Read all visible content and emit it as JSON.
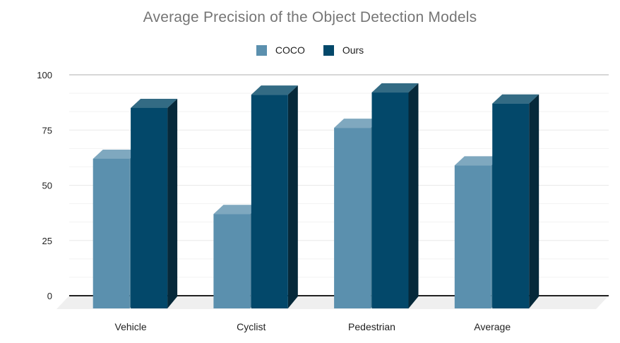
{
  "title": {
    "text": "Average Precision of the Object Detection Models",
    "color": "#757575"
  },
  "legend": {
    "position": "top",
    "items": [
      {
        "label": "COCO"
      },
      {
        "label": "Ours"
      }
    ]
  },
  "y_axis": {
    "tick_labels": [
      "100",
      "75",
      "50",
      "25",
      "0"
    ]
  },
  "chart_data": {
    "type": "bar",
    "variant": "3d-column",
    "title": "Average Precision of the Object Detection Models",
    "categories": [
      "Vehicle",
      "Cyclist",
      "Pedestrian",
      "Average"
    ],
    "series": [
      {
        "name": "COCO",
        "values": [
          62,
          37,
          76,
          59
        ],
        "color": "#5b90ae",
        "color_top": "#7fa8bf",
        "color_side": "#4a7e97"
      },
      {
        "name": "Ours",
        "values": [
          85,
          91,
          92,
          87
        ],
        "color": "#03486a",
        "color_top": "#336b84",
        "color_side": "#06293a"
      }
    ],
    "xlabel": "",
    "ylabel": "",
    "ylim": [
      0,
      100
    ],
    "y_major_ticks": [
      0,
      25,
      50,
      75,
      100
    ],
    "y_minor_step": 8.333,
    "grid": true,
    "legend_position": "top",
    "background": "#ffffff",
    "floor_color": "#efefef",
    "zero_line_color": "#212121",
    "gridline_colors": {
      "top": "#d7d7d7",
      "major": "#e8e8e8",
      "minor": "#f2f2f2"
    }
  }
}
